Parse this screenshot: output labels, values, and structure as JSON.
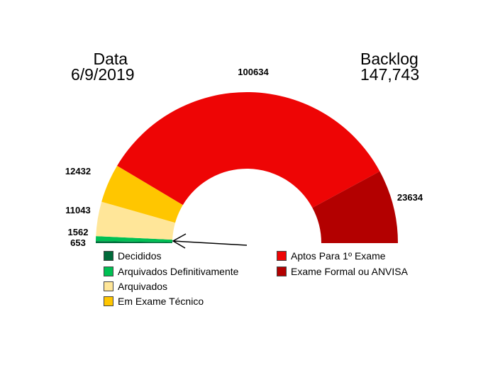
{
  "header": {
    "date_label": "Data",
    "date_value": "6/9/2019",
    "backlog_label": "Backlog",
    "backlog_value": "147,743"
  },
  "chart_data": {
    "type": "pie",
    "variant": "half-donut",
    "slices": [
      {
        "name": "Decididos",
        "value": 653,
        "label": "653",
        "color": "#006a3a"
      },
      {
        "name": "Arquivados Definitivamente",
        "value": 1562,
        "label": "1562",
        "color": "#00c054"
      },
      {
        "name": "Arquivados",
        "value": 11043,
        "label": "11043",
        "color": "#ffe699"
      },
      {
        "name": "Em Exame Técnico",
        "value": 12432,
        "label": "12432",
        "color": "#ffc600"
      },
      {
        "name": "Aptos Para 1º Exame",
        "value": 100634,
        "label": "100634",
        "color": "#ee0505"
      },
      {
        "name": "Exame Formal ou ANVISA",
        "value": 23634,
        "label": "23634",
        "color": "#b30000"
      }
    ],
    "legend_placement": "bottom",
    "annotation": "arrow pointing to Decididos / Arquivados Definitivamente boundary"
  }
}
